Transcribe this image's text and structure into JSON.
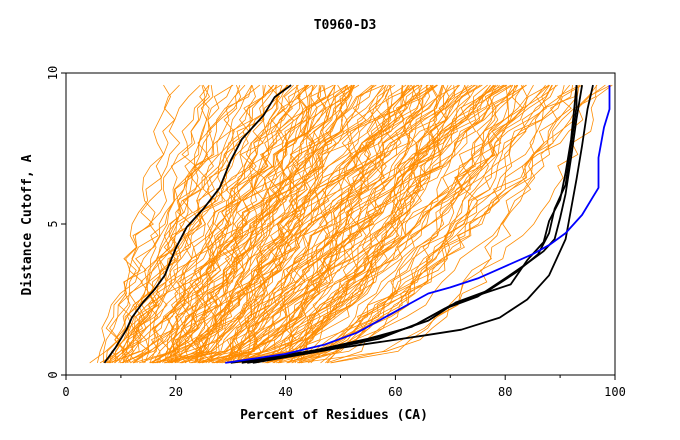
{
  "chart_data": {
    "type": "line",
    "title": "T0960-D3",
    "xlabel": "Percent of Residues (CA)",
    "ylabel": "Distance Cutoff, A",
    "xlim": [
      0,
      100
    ],
    "ylim": [
      0,
      10
    ],
    "x_ticks": [
      "0",
      "20",
      "40",
      "60",
      "80",
      "100"
    ],
    "y_ticks": [
      "0",
      "5",
      "10"
    ],
    "grid": false,
    "legend": "none",
    "colors": {
      "background_models": "#ff8c00",
      "highlight_models": "#000000",
      "reference_model": "#0000ff"
    },
    "series": [
      {
        "color": "#000000",
        "points": [
          [
            7,
            0.4
          ],
          [
            9,
            0.9
          ],
          [
            11,
            1.5
          ],
          [
            12,
            1.9
          ],
          [
            14,
            2.4
          ],
          [
            16,
            2.8
          ],
          [
            18,
            3.3
          ],
          [
            20,
            4.2
          ],
          [
            22,
            4.9
          ],
          [
            25,
            5.5
          ],
          [
            28,
            6.2
          ],
          [
            30,
            7.1
          ],
          [
            32,
            7.8
          ],
          [
            36,
            8.6
          ],
          [
            38,
            9.2
          ],
          [
            41,
            9.6
          ]
        ]
      },
      {
        "color": "#000000",
        "points": [
          [
            34,
            0.4
          ],
          [
            50,
            0.9
          ],
          [
            65,
            1.3
          ],
          [
            72,
            1.5
          ],
          [
            79,
            1.9
          ],
          [
            84,
            2.5
          ],
          [
            88,
            3.3
          ],
          [
            91,
            4.5
          ],
          [
            92,
            5.5
          ],
          [
            93,
            6.5
          ],
          [
            94,
            7.6
          ],
          [
            95,
            8.8
          ],
          [
            96,
            9.6
          ]
        ]
      },
      {
        "color": "#000000",
        "points": [
          [
            30,
            0.4
          ],
          [
            45,
            0.8
          ],
          [
            55,
            1.2
          ],
          [
            63,
            1.6
          ],
          [
            69,
            2.2
          ],
          [
            75,
            2.6
          ],
          [
            80,
            3.2
          ],
          [
            84,
            3.7
          ],
          [
            87,
            4.1
          ],
          [
            89,
            4.5
          ],
          [
            90,
            5.2
          ],
          [
            91,
            6.0
          ],
          [
            92,
            7.2
          ],
          [
            93,
            8.5
          ],
          [
            94,
            9.6
          ]
        ]
      },
      {
        "color": "#000000",
        "points": [
          [
            32,
            0.4
          ],
          [
            48,
            0.9
          ],
          [
            58,
            1.3
          ],
          [
            66,
            1.8
          ],
          [
            71,
            2.4
          ],
          [
            77,
            2.8
          ],
          [
            82,
            3.4
          ],
          [
            86,
            4.0
          ],
          [
            88,
            4.7
          ],
          [
            89,
            5.5
          ],
          [
            91,
            6.3
          ],
          [
            92,
            7.6
          ],
          [
            93,
            8.9
          ],
          [
            93,
            9.6
          ]
        ]
      },
      {
        "color": "#000000",
        "points": [
          [
            33,
            0.4
          ],
          [
            46,
            0.8
          ],
          [
            57,
            1.2
          ],
          [
            64,
            1.7
          ],
          [
            70,
            2.3
          ],
          [
            76,
            2.7
          ],
          [
            81,
            3.0
          ],
          [
            84,
            3.8
          ],
          [
            87,
            4.4
          ],
          [
            88,
            5.1
          ],
          [
            90,
            5.8
          ],
          [
            91,
            6.7
          ],
          [
            92,
            7.8
          ],
          [
            93,
            9.6
          ]
        ]
      },
      {
        "color": "#0000ff",
        "points": [
          [
            29,
            0.4
          ],
          [
            40,
            0.7
          ],
          [
            47,
            1.0
          ],
          [
            53,
            1.4
          ],
          [
            58,
            1.9
          ],
          [
            62,
            2.3
          ],
          [
            66,
            2.7
          ],
          [
            70,
            2.9
          ],
          [
            75,
            3.2
          ],
          [
            80,
            3.6
          ],
          [
            85,
            4.0
          ],
          [
            88,
            4.3
          ],
          [
            91,
            4.7
          ],
          [
            94,
            5.3
          ],
          [
            96,
            5.9
          ],
          [
            97,
            6.2
          ],
          [
            97,
            7.2
          ],
          [
            98,
            8.2
          ],
          [
            99,
            8.8
          ],
          [
            99,
            9.6
          ]
        ]
      }
    ]
  }
}
